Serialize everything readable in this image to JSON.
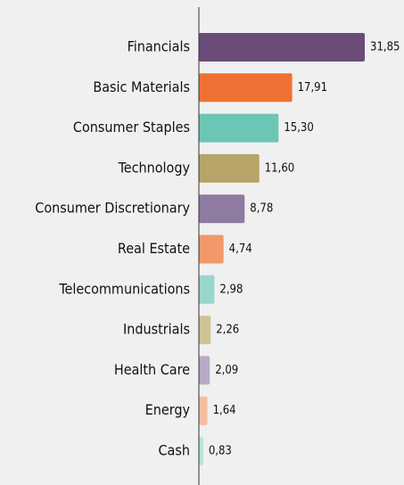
{
  "chart_data": {
    "type": "bar",
    "orientation": "horizontal",
    "categories": [
      "Financials",
      "Basic Materials",
      "Consumer Staples",
      "Technology",
      "Consumer Discretionary",
      "Real Estate",
      "Telecommunications",
      "Industrials",
      "Health Care",
      "Energy",
      "Cash"
    ],
    "values": [
      31.85,
      17.91,
      15.3,
      11.6,
      8.78,
      4.74,
      2.98,
      2.26,
      2.09,
      1.64,
      0.83
    ],
    "value_labels": [
      "31,85",
      "17,91",
      "15,30",
      "11,60",
      "8,78",
      "4,74",
      "2,98",
      "2,26",
      "2,09",
      "1,64",
      "0,83"
    ],
    "colors": [
      "#6a4b79",
      "#ee7133",
      "#6cc6b6",
      "#b6a468",
      "#8f7aa1",
      "#f1996a",
      "#98d7ca",
      "#cfc294",
      "#b9aac6",
      "#f6bc9f",
      "#b8e3db"
    ]
  }
}
